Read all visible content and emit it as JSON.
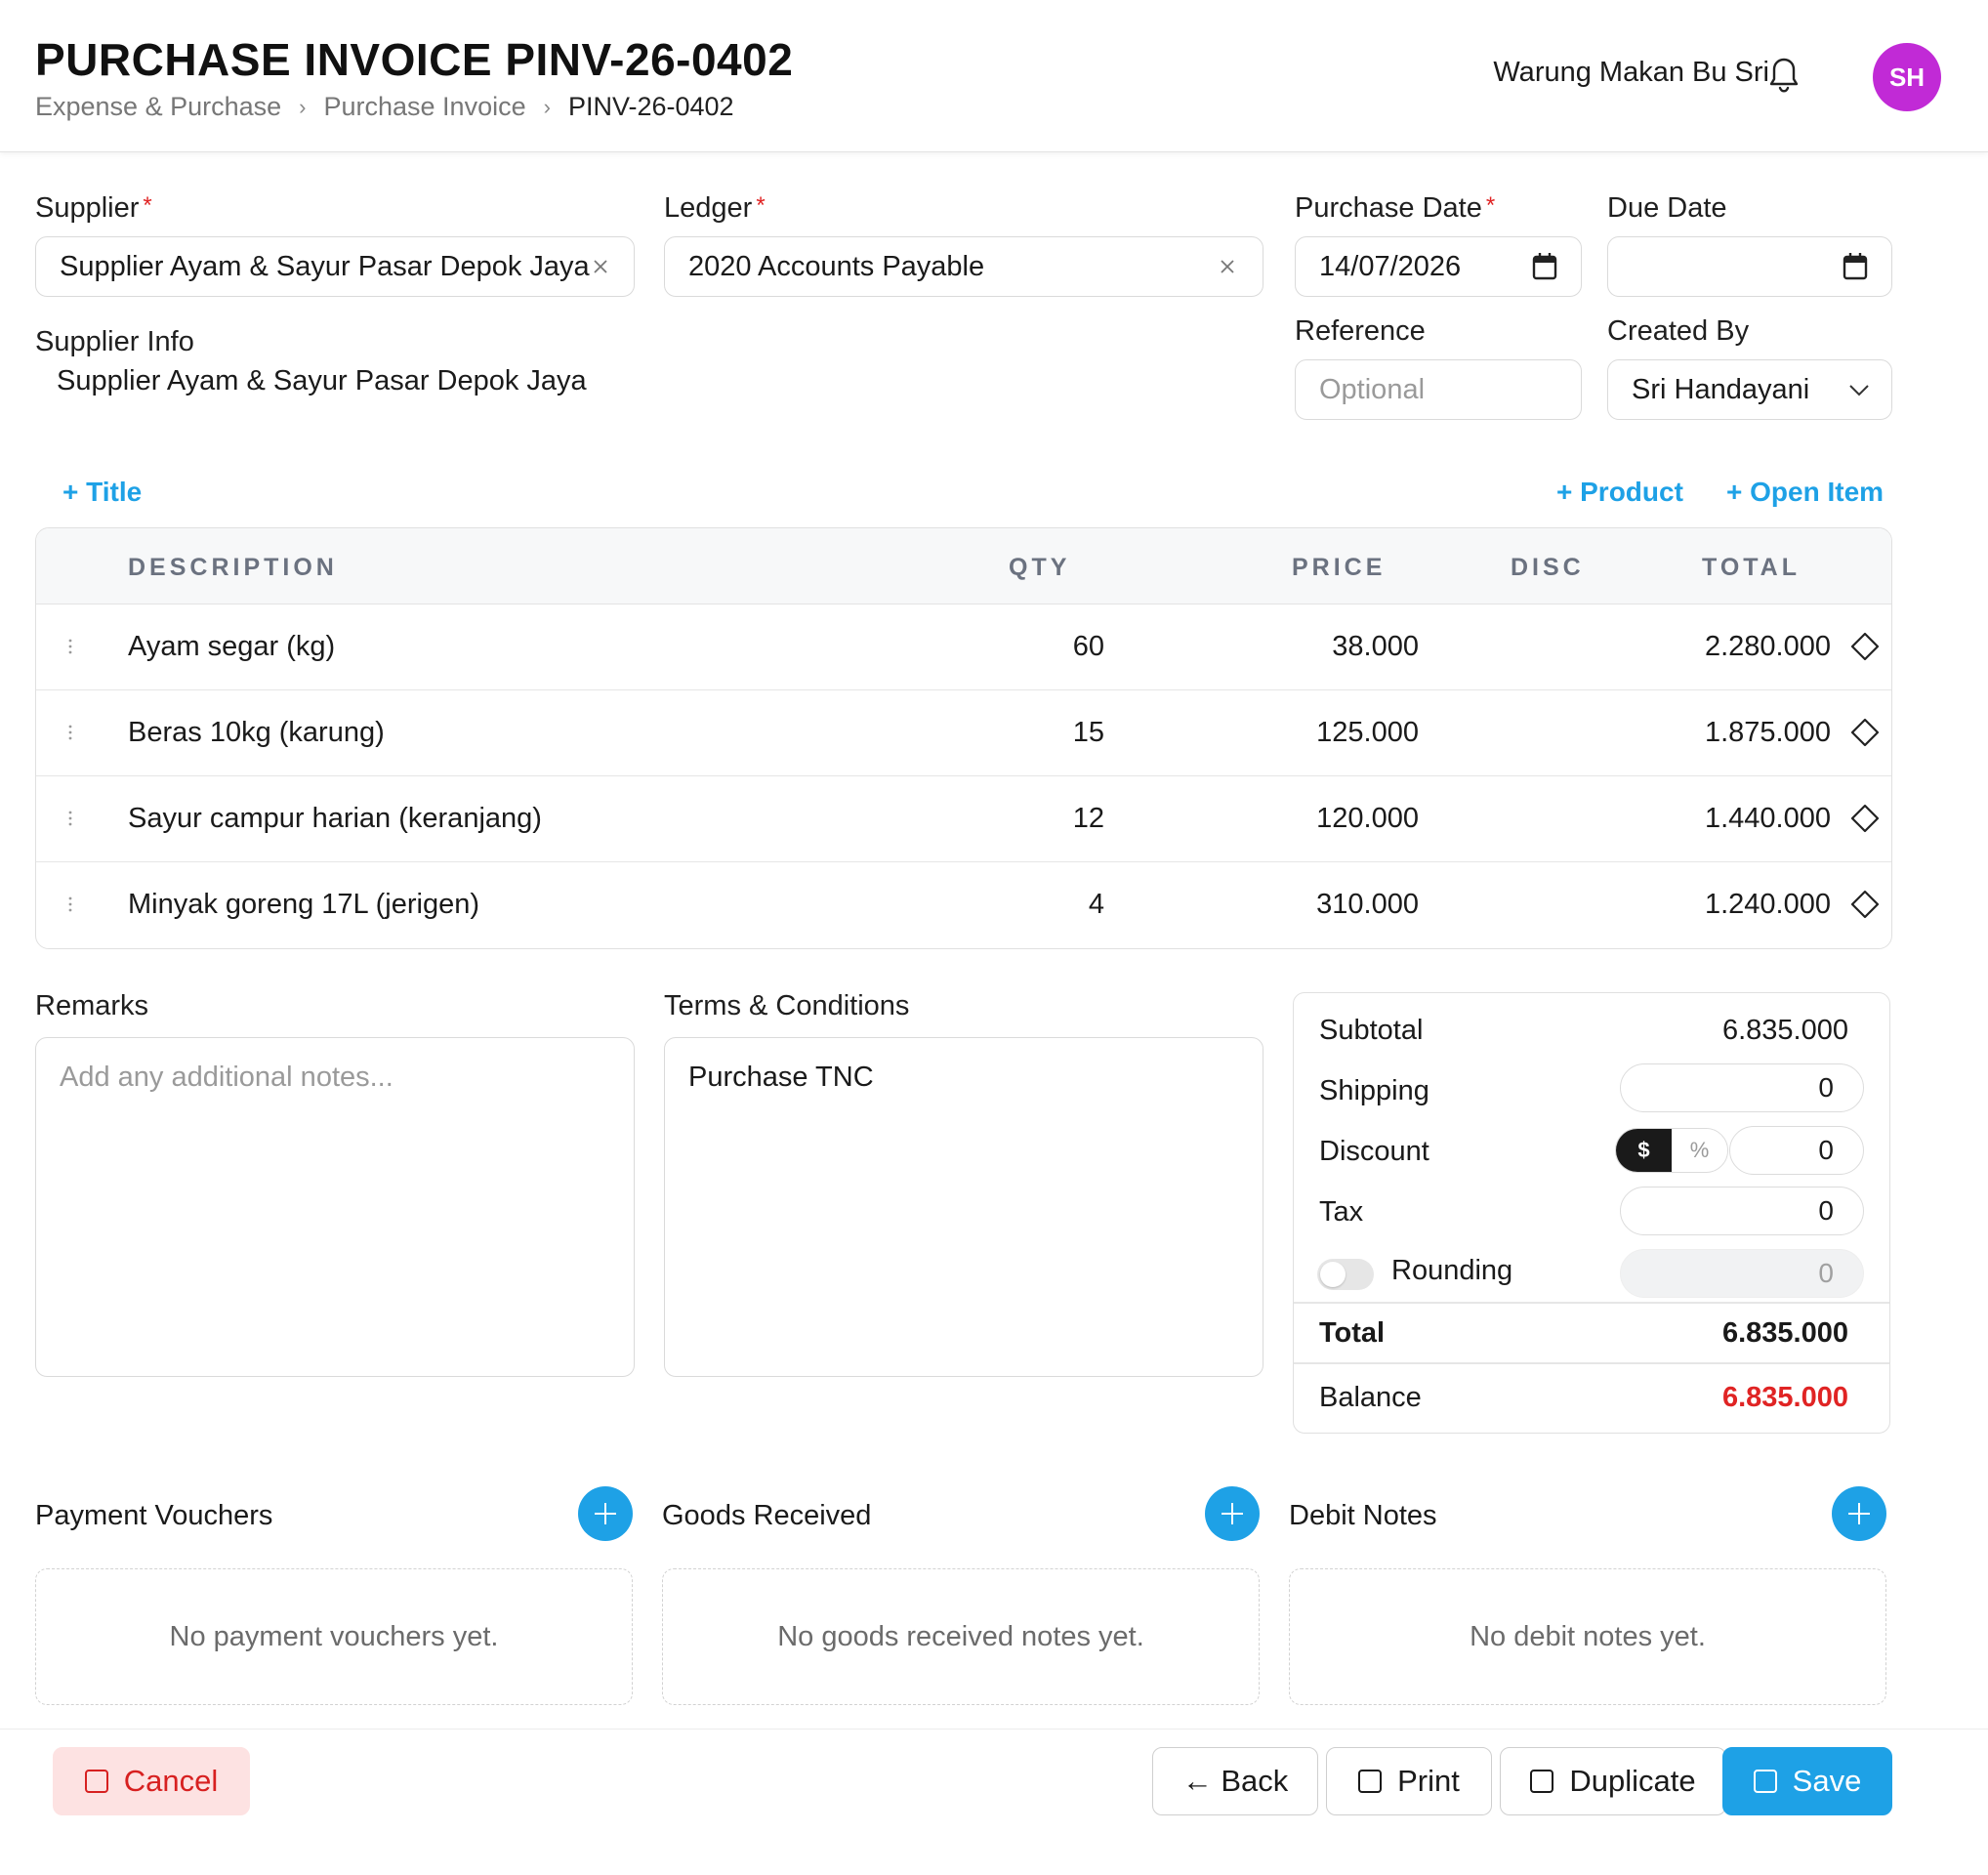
{
  "header": {
    "title": "PURCHASE INVOICE PINV-26-0402",
    "breadcrumb": [
      "Expense & Purchase",
      "Purchase Invoice",
      "PINV-26-0402"
    ],
    "company": "Warung Makan Bu Sri",
    "avatar_initials": "SH",
    "avatar_color": "#c12ad6"
  },
  "form": {
    "supplier_label": "Supplier",
    "supplier_value": "Supplier Ayam & Sayur Pasar Depok Jaya",
    "ledger_label": "Ledger",
    "ledger_value": "2020 Accounts Payable",
    "purchase_date_label": "Purchase Date",
    "purchase_date_value": "14/07/2026",
    "due_date_label": "Due Date",
    "due_date_value": "",
    "supplier_info_label": "Supplier Info",
    "supplier_info_value": "Supplier Ayam & Sayur Pasar Depok Jaya",
    "reference_label": "Reference",
    "reference_placeholder": "Optional",
    "created_by_label": "Created By",
    "created_by_value": "Sri Handayani",
    "required_mark": "*"
  },
  "links": {
    "add_title": "+ Title",
    "add_product": "+ Product",
    "add_open_item": "+ Open Item"
  },
  "table": {
    "columns": [
      "DESCRIPTION",
      "QTY",
      "PRICE",
      "DISC",
      "TOTAL"
    ],
    "rows": [
      {
        "description": "Ayam segar (kg)",
        "qty": "60",
        "price": "38.000",
        "disc": "",
        "total": "2.280.000"
      },
      {
        "description": "Beras 10kg (karung)",
        "qty": "15",
        "price": "125.000",
        "disc": "",
        "total": "1.875.000"
      },
      {
        "description": "Sayur campur harian (keranjang)",
        "qty": "12",
        "price": "120.000",
        "disc": "",
        "total": "1.440.000"
      },
      {
        "description": "Minyak goreng 17L (jerigen)",
        "qty": "4",
        "price": "310.000",
        "disc": "",
        "total": "1.240.000"
      }
    ]
  },
  "remarks": {
    "label": "Remarks",
    "placeholder": "Add any additional notes..."
  },
  "terms": {
    "label": "Terms & Conditions",
    "value": "Purchase TNC"
  },
  "totals": {
    "subtotal_label": "Subtotal",
    "subtotal_value": "6.835.000",
    "shipping_label": "Shipping",
    "shipping_value": "0",
    "discount_label": "Discount",
    "discount_mode_dollar": "$",
    "discount_mode_percent": "%",
    "discount_value": "0",
    "tax_label": "Tax",
    "tax_value": "0",
    "rounding_label": "Rounding",
    "rounding_value": "0",
    "total_label": "Total",
    "total_value": "6.835.000",
    "balance_label": "Balance",
    "balance_value": "6.835.000",
    "balance_color": "#e02424"
  },
  "sections": [
    {
      "title": "Payment Vouchers",
      "empty": "No payment vouchers yet."
    },
    {
      "title": "Goods Received",
      "empty": "No goods received notes yet."
    },
    {
      "title": "Debit Notes",
      "empty": "No debit notes yet."
    }
  ],
  "footer": {
    "cancel": "Cancel",
    "back": "← Back",
    "print": "Print",
    "duplicate": "Duplicate",
    "save": "Save"
  },
  "colors": {
    "accent": "#1ea1e6",
    "danger": "#d72020"
  }
}
